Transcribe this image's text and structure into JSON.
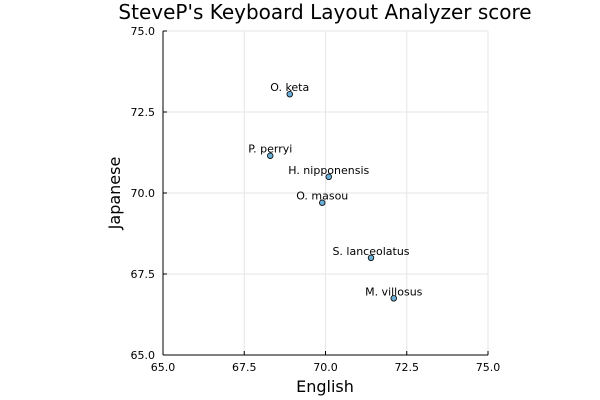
{
  "chart_data": {
    "type": "scatter",
    "title": "SteveP's Keyboard Layout Analyzer score",
    "xlabel": "English",
    "ylabel": "Japanese",
    "xlim": [
      65.0,
      75.0
    ],
    "ylim": [
      65.0,
      75.0
    ],
    "xticks": [
      "65.0",
      "67.5",
      "70.0",
      "72.5",
      "75.0"
    ],
    "yticks": [
      "65.0",
      "67.5",
      "70.0",
      "72.5",
      "75.0"
    ],
    "grid": true,
    "legend": "none",
    "marker_color": "#6aaed6",
    "points": [
      {
        "label": "O. keta",
        "x": 68.9,
        "y": 73.05
      },
      {
        "label": "P. perryi",
        "x": 68.3,
        "y": 71.15
      },
      {
        "label": "H. nipponensis",
        "x": 70.1,
        "y": 70.5
      },
      {
        "label": "O. masou",
        "x": 69.9,
        "y": 69.7
      },
      {
        "label": "S. lanceolatus",
        "x": 71.4,
        "y": 68.0
      },
      {
        "label": "M. villosus",
        "x": 72.1,
        "y": 66.75
      }
    ]
  }
}
